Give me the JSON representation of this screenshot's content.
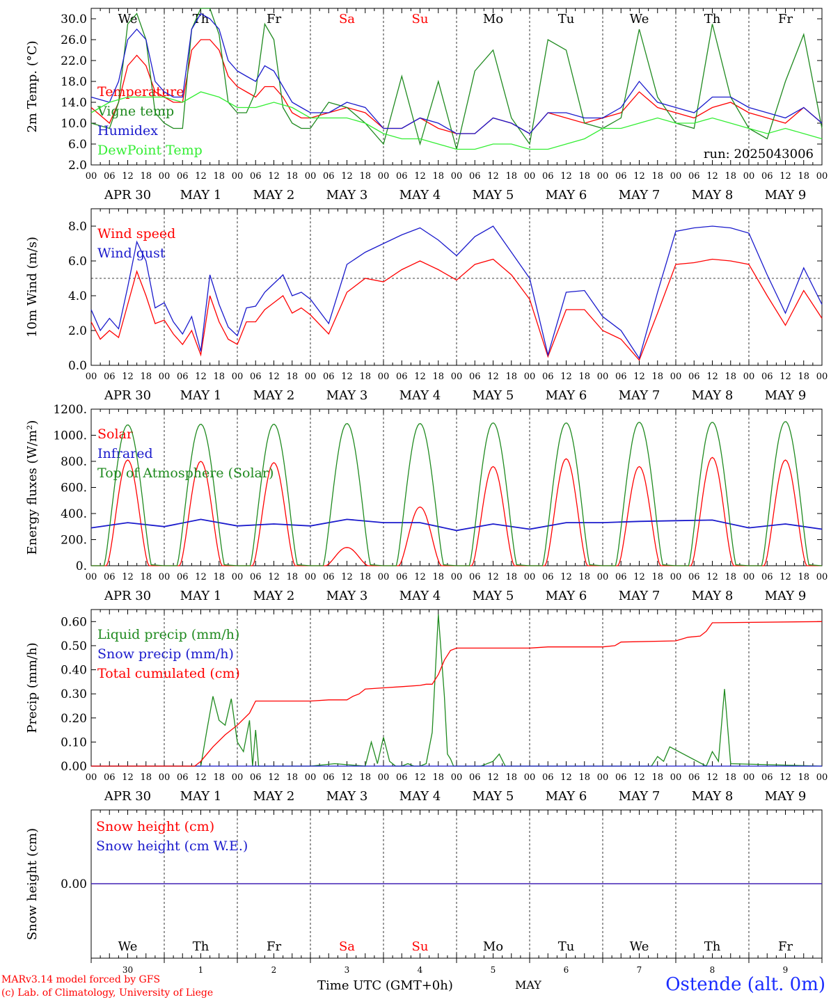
{
  "header": {
    "days": [
      "We",
      "Th",
      "Fr",
      "Sa",
      "Su",
      "Mo",
      "Tu",
      "We",
      "Th",
      "Fr"
    ],
    "weekend_flags": [
      false,
      false,
      false,
      true,
      true,
      false,
      false,
      false,
      false,
      false
    ],
    "weekend_color": "#ff0000",
    "date_labels": [
      "APR 30",
      "MAY  1",
      "MAY  2",
      "MAY  3",
      "MAY  4",
      "MAY  5",
      "MAY  6",
      "MAY  7",
      "MAY  8",
      "MAY  9"
    ],
    "hour_labels": [
      "00",
      "06",
      "12",
      "18"
    ],
    "last_hour_label": "00",
    "day_numbers": [
      "30",
      "1",
      "2",
      "3",
      "4",
      "5",
      "6",
      "7",
      "8",
      "9"
    ]
  },
  "chart_data": [
    {
      "id": "temperature",
      "type": "line",
      "ylabel": "2m Temp. (°C)",
      "ylim": [
        2.0,
        32.0
      ],
      "yticks": [
        "2.0",
        "6.0",
        "10.0",
        "14.0",
        "18.0",
        "22.0",
        "26.0",
        "30.0"
      ],
      "ytick_values": [
        2,
        6,
        10,
        14,
        18,
        22,
        26,
        30
      ],
      "annotation": "run: 2025043006",
      "x_unit": "hours since 2025-04-30 00 UTC",
      "series": [
        {
          "name": "Temperature",
          "color": "#ff0000",
          "x": [
            0,
            6,
            9,
            12,
            15,
            18,
            21,
            24,
            27,
            30,
            33,
            36,
            39,
            42,
            45,
            48,
            51,
            54,
            57,
            60,
            63,
            66,
            69,
            72,
            78,
            84,
            90,
            96,
            102,
            108,
            114,
            120,
            126,
            132,
            138,
            144,
            150,
            156,
            162,
            168,
            174,
            180,
            186,
            192,
            198,
            204,
            210,
            216,
            222,
            228,
            234,
            240
          ],
          "y": [
            13,
            10,
            14,
            21,
            23,
            21,
            16,
            15,
            14,
            14,
            24,
            26,
            26,
            24,
            19,
            17,
            16,
            15,
            17,
            17,
            15,
            12,
            11,
            11,
            12,
            13,
            12,
            9,
            9,
            11,
            9,
            8,
            8,
            11,
            10,
            8,
            12,
            11,
            10,
            11,
            12,
            16,
            13,
            12,
            11,
            13,
            14,
            12,
            11,
            10,
            13,
            10
          ]
        },
        {
          "name": "Vigne temp",
          "color": "#1f8a1f",
          "x": [
            0,
            6,
            9,
            12,
            15,
            18,
            21,
            24,
            27,
            30,
            33,
            36,
            39,
            42,
            45,
            48,
            51,
            54,
            57,
            60,
            63,
            66,
            69,
            72,
            78,
            84,
            90,
            96,
            102,
            108,
            114,
            120,
            126,
            132,
            138,
            144,
            150,
            156,
            162,
            168,
            174,
            180,
            186,
            192,
            198,
            204,
            210,
            216,
            222,
            228,
            234,
            240
          ],
          "y": [
            10,
            9,
            14,
            29,
            31,
            26,
            12,
            10,
            9,
            9,
            28,
            32,
            32,
            27,
            14,
            12,
            12,
            16,
            29,
            26,
            13,
            10,
            9,
            9,
            14,
            13,
            10,
            6,
            19,
            6,
            18,
            5,
            20,
            24,
            11,
            6,
            26,
            24,
            10,
            9,
            11,
            28,
            15,
            10,
            9,
            29,
            15,
            9,
            7,
            18,
            27,
            9
          ]
        },
        {
          "name": "Humidex",
          "color": "#1a1acc",
          "x": [
            0,
            6,
            9,
            12,
            15,
            18,
            21,
            24,
            27,
            30,
            33,
            36,
            39,
            42,
            45,
            48,
            51,
            54,
            57,
            60,
            63,
            66,
            69,
            72,
            78,
            84,
            90,
            96,
            102,
            108,
            114,
            120,
            126,
            132,
            138,
            144,
            150,
            156,
            162,
            168,
            174,
            180,
            186,
            192,
            198,
            204,
            210,
            216,
            222,
            228,
            234,
            240
          ],
          "y": [
            15,
            14,
            18,
            26,
            28,
            26,
            18,
            16,
            15,
            15,
            28,
            31,
            30,
            28,
            22,
            20,
            19,
            18,
            21,
            20,
            17,
            14,
            13,
            12,
            12,
            14,
            13,
            9,
            9,
            11,
            10,
            8,
            8,
            11,
            10,
            8,
            12,
            12,
            11,
            11,
            13,
            18,
            14,
            13,
            12,
            15,
            15,
            13,
            12,
            11,
            13,
            10
          ]
        },
        {
          "name": "DewPoint Temp",
          "color": "#33ee33",
          "x": [
            0,
            6,
            12,
            18,
            24,
            30,
            36,
            42,
            48,
            54,
            60,
            66,
            72,
            78,
            84,
            90,
            96,
            102,
            108,
            114,
            120,
            126,
            132,
            138,
            144,
            150,
            156,
            162,
            168,
            174,
            180,
            186,
            192,
            198,
            204,
            210,
            216,
            222,
            228,
            234,
            240
          ],
          "y": [
            12,
            14,
            15,
            15,
            15,
            14,
            16,
            15,
            13,
            13,
            14,
            13,
            11,
            11,
            11,
            10,
            8,
            7,
            7,
            6,
            5,
            5,
            6,
            6,
            5,
            5,
            6,
            7,
            9,
            9,
            10,
            11,
            10,
            10,
            11,
            10,
            9,
            8,
            9,
            8,
            7
          ]
        }
      ]
    },
    {
      "id": "wind",
      "type": "line",
      "ylabel": "10m Wind (m/s)",
      "ylim": [
        0.0,
        9.0
      ],
      "yticks": [
        "0.0",
        "2.0",
        "4.0",
        "6.0",
        "8.0"
      ],
      "ytick_values": [
        0,
        2,
        4,
        6,
        8
      ],
      "reference_line": 5.0,
      "series": [
        {
          "name": "Wind speed",
          "color": "#ff0000",
          "x": [
            0,
            3,
            6,
            9,
            12,
            15,
            18,
            21,
            24,
            27,
            30,
            33,
            36,
            39,
            42,
            45,
            48,
            51,
            54,
            57,
            60,
            63,
            66,
            69,
            72,
            78,
            84,
            90,
            96,
            102,
            108,
            114,
            120,
            126,
            132,
            138,
            144,
            150,
            156,
            162,
            168,
            174,
            180,
            186,
            192,
            198,
            204,
            210,
            216,
            222,
            228,
            234,
            240
          ],
          "y": [
            2.5,
            1.5,
            2,
            1.6,
            3.5,
            5.4,
            4,
            2.4,
            2.6,
            1.8,
            1.2,
            2,
            0.6,
            4,
            2.5,
            1.5,
            1.2,
            2.5,
            2.5,
            3.2,
            3.6,
            4,
            3,
            3.3,
            2.9,
            1.8,
            4.2,
            5,
            4.8,
            5.5,
            6,
            5.5,
            4.9,
            5.8,
            6.1,
            5.2,
            3.8,
            0.5,
            3.2,
            3.2,
            2,
            1.5,
            0.3,
            3,
            5.8,
            5.9,
            6.1,
            6,
            5.8,
            4,
            2.3,
            4.3,
            2.7
          ]
        },
        {
          "name": "Wind gust",
          "color": "#1a1acc",
          "x": [
            0,
            3,
            6,
            9,
            12,
            15,
            18,
            21,
            24,
            27,
            30,
            33,
            36,
            39,
            42,
            45,
            48,
            51,
            54,
            57,
            60,
            63,
            66,
            69,
            72,
            78,
            84,
            90,
            96,
            102,
            108,
            114,
            120,
            126,
            132,
            138,
            144,
            150,
            156,
            162,
            168,
            174,
            180,
            186,
            192,
            198,
            204,
            210,
            216,
            222,
            228,
            234,
            240
          ],
          "y": [
            3.2,
            2,
            2.7,
            2.1,
            4.5,
            7.1,
            6,
            3.3,
            3.6,
            2.5,
            1.8,
            2.8,
            0.8,
            5.2,
            3.5,
            2.2,
            1.7,
            3.3,
            3.4,
            4.2,
            4.7,
            5.2,
            4,
            4.2,
            3.8,
            2.4,
            5.8,
            6.5,
            7,
            7.5,
            7.9,
            7.2,
            6.3,
            7.4,
            8,
            6.5,
            5,
            0.6,
            4.2,
            4.3,
            2.8,
            2,
            0.4,
            4.2,
            7.7,
            7.9,
            8,
            7.9,
            7.6,
            5.2,
            3,
            5.6,
            3.5
          ]
        }
      ]
    },
    {
      "id": "energy",
      "type": "line",
      "ylabel": "Energy fluxes (W/m²)",
      "ylim": [
        0,
        1200
      ],
      "yticks": [
        "0.",
        "200.",
        "400.",
        "600.",
        "800.",
        "1000.",
        "1200."
      ],
      "ytick_values": [
        0,
        200,
        400,
        600,
        800,
        1000,
        1200
      ],
      "series": [
        {
          "name": "Solar",
          "color": "#ff0000",
          "daily_peaks": [
            810,
            800,
            790,
            140,
            450,
            760,
            820,
            760,
            830,
            810
          ]
        },
        {
          "name": "Infrared",
          "color": "#1a1acc",
          "x": [
            0,
            12,
            24,
            36,
            48,
            60,
            72,
            84,
            96,
            108,
            120,
            132,
            144,
            156,
            168,
            180,
            192,
            204,
            216,
            228,
            240
          ],
          "y": [
            290,
            330,
            300,
            355,
            305,
            320,
            305,
            355,
            330,
            330,
            270,
            320,
            280,
            330,
            330,
            340,
            345,
            350,
            290,
            320,
            280
          ]
        },
        {
          "name": "Top of Atmosphere (Solar)",
          "color": "#1f8a1f",
          "daily_peaks": [
            1080,
            1085,
            1085,
            1090,
            1090,
            1095,
            1095,
            1100,
            1100,
            1105
          ]
        }
      ]
    },
    {
      "id": "precip",
      "type": "line",
      "ylabel": "Precip (mm/h)",
      "ylim": [
        0.0,
        0.65
      ],
      "yticks": [
        "0.00",
        "0.10",
        "0.20",
        "0.30",
        "0.40",
        "0.50",
        "0.60"
      ],
      "ytick_values": [
        0,
        0.1,
        0.2,
        0.3,
        0.4,
        0.5,
        0.6
      ],
      "series": [
        {
          "name": "Liquid precip (mm/h)",
          "color": "#1f8a1f",
          "x": [
            0,
            36,
            38,
            40,
            42,
            44,
            46,
            48,
            50,
            52,
            53,
            54,
            55,
            56,
            72,
            80,
            90,
            92,
            94,
            96,
            98,
            100,
            102,
            104,
            106,
            108,
            110,
            112,
            114,
            116,
            117,
            118,
            119,
            120,
            128,
            132,
            134,
            136,
            138,
            184,
            186,
            188,
            190,
            202,
            204,
            206,
            208,
            210,
            240
          ],
          "y": [
            0,
            0,
            0.15,
            0.29,
            0.19,
            0.17,
            0.28,
            0.1,
            0.06,
            0.19,
            0,
            0.15,
            0,
            0,
            0,
            0.01,
            0,
            0.1,
            0.01,
            0.12,
            0.02,
            0,
            0,
            0.01,
            0,
            0,
            0.01,
            0.14,
            0.63,
            0.29,
            0.05,
            0.03,
            0,
            0,
            0,
            0.02,
            0.05,
            0,
            0,
            0,
            0.04,
            0.02,
            0.08,
            0,
            0.06,
            0.02,
            0.32,
            0.01,
            0
          ]
        },
        {
          "name": "Snow precip (mm/h)",
          "color": "#1a1acc",
          "x": [
            0,
            240
          ],
          "y": [
            0,
            0
          ]
        },
        {
          "name": "Total cumulated (cm)",
          "color": "#ff0000",
          "x": [
            0,
            34,
            36,
            40,
            44,
            48,
            52,
            54,
            72,
            78,
            84,
            86,
            88,
            90,
            96,
            102,
            108,
            110,
            112,
            114,
            116,
            118,
            120,
            144,
            150,
            168,
            172,
            174,
            192,
            196,
            200,
            202,
            204,
            240
          ],
          "y": [
            0,
            0,
            0.02,
            0.08,
            0.13,
            0.17,
            0.22,
            0.27,
            0.27,
            0.275,
            0.275,
            0.29,
            0.3,
            0.32,
            0.325,
            0.33,
            0.335,
            0.34,
            0.34,
            0.38,
            0.44,
            0.48,
            0.49,
            0.49,
            0.495,
            0.495,
            0.5,
            0.515,
            0.52,
            0.535,
            0.54,
            0.56,
            0.595,
            0.6
          ]
        }
      ]
    },
    {
      "id": "snow",
      "type": "line",
      "ylabel": "Snow height (cm)",
      "yticks": [
        "0.00"
      ],
      "ytick_values": [
        0
      ],
      "series": [
        {
          "name": "Snow height (cm)",
          "color": "#ff0000",
          "x": [
            0,
            240
          ],
          "y": [
            0,
            0
          ]
        },
        {
          "name": "Snow height (cm W.E.)",
          "color": "#1a1acc",
          "x": [
            0,
            240
          ],
          "y": [
            0,
            0
          ]
        }
      ]
    }
  ],
  "footer": {
    "credit_line1": "MARv3.14 model forced by GFS",
    "credit_line2": "(c) Lab. of Climatology, University of Liege",
    "xaxis_title": "Time UTC (GMT+0h)",
    "month": "MAY",
    "station": "Ostende (alt. 0m)"
  }
}
